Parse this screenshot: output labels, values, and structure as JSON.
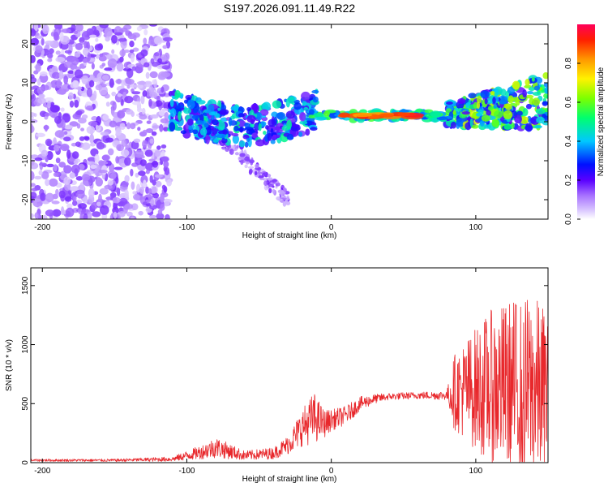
{
  "title": "S197.2026.091.11.49.R22",
  "colors": {
    "snr_line": "#e8282c",
    "sparse_cloud": "#b38bf0",
    "sparse_core": "#6a1fe0",
    "band_base": "#3b10e8"
  },
  "chart_data": [
    {
      "type": "heatmap",
      "name": "spectrogram",
      "xlabel": "Height of straight line (km)",
      "ylabel": "Frequency (Hz)",
      "xlim": [
        -208,
        150
      ],
      "ylim": [
        -25,
        25
      ],
      "xticks": [
        -200,
        -100,
        0,
        100
      ],
      "yticks": [
        -20,
        -10,
        0,
        10,
        20
      ],
      "xtick_labels": [
        "-200",
        "-100",
        "0",
        "100"
      ],
      "ytick_labels": [
        "-20",
        "-10",
        "0",
        "10",
        "20"
      ],
      "colorbar": {
        "label": "Normalized spectral amplitude",
        "range": [
          0,
          1
        ],
        "ticks": [
          0.0,
          0.2,
          0.4,
          0.6,
          0.8
        ],
        "tick_labels": [
          "0.0",
          "0.2",
          "0.4",
          "0.6",
          "0.8"
        ]
      },
      "regions": [
        {
          "description": "low-level scattered noise",
          "x_range": [
            -208,
            -112
          ],
          "freq_range": [
            -25,
            25
          ],
          "amplitude": 0.08
        },
        {
          "description": "fading branch",
          "x_range": [
            -95,
            -30
          ],
          "freq_range": [
            -22,
            2
          ],
          "amplitude": 0.12
        },
        {
          "description": "dispersed band",
          "x_range": [
            -112,
            -10
          ],
          "freq_range": [
            -7,
            8
          ],
          "amplitude": 0.25
        },
        {
          "description": "strong narrow band",
          "x_range": [
            -15,
            80
          ],
          "freq_range": [
            0,
            3
          ],
          "amplitude": 0.95
        },
        {
          "description": "broadening band",
          "x_range": [
            80,
            150
          ],
          "freq_range": [
            -3,
            10
          ],
          "amplitude": 0.35
        }
      ]
    },
    {
      "type": "line",
      "name": "snr",
      "xlabel": "Height of straight line (km)",
      "ylabel": "SNR (10 * v/v)",
      "xlim": [
        -208,
        150
      ],
      "ylim": [
        0,
        1650
      ],
      "xticks": [
        -200,
        -100,
        0,
        100
      ],
      "yticks": [
        0,
        500,
        1000,
        1500
      ],
      "xtick_labels": [
        "-200",
        "-100",
        "0",
        "100"
      ],
      "ytick_labels": [
        "0",
        "500",
        "1000",
        "1500"
      ],
      "series": [
        {
          "name": "SNR",
          "x": [
            -208,
            -150,
            -110,
            -90,
            -80,
            -60,
            -40,
            -30,
            -20,
            -12,
            -5,
            0,
            10,
            20,
            30,
            40,
            60,
            80,
            85,
            95,
            110,
            125,
            140,
            150
          ],
          "y": [
            20,
            20,
            30,
            90,
            130,
            60,
            80,
            150,
            300,
            380,
            330,
            360,
            400,
            500,
            540,
            560,
            570,
            570,
            600,
            620,
            640,
            640,
            620,
            600
          ],
          "spread": [
            10,
            12,
            20,
            60,
            90,
            40,
            50,
            80,
            160,
            220,
            120,
            90,
            80,
            60,
            40,
            30,
            30,
            40,
            320,
            460,
            650,
            750,
            800,
            700
          ]
        }
      ]
    }
  ]
}
